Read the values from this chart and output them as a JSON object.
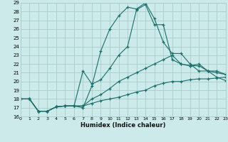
{
  "xlabel": "Humidex (Indice chaleur)",
  "bg_color": "#cceaea",
  "grid_color": "#aacccc",
  "line_color": "#1a6e6a",
  "xlim": [
    0,
    23
  ],
  "ylim": [
    16,
    29
  ],
  "yticks": [
    16,
    17,
    18,
    19,
    20,
    21,
    22,
    23,
    24,
    25,
    26,
    27,
    28,
    29
  ],
  "xticks": [
    0,
    1,
    2,
    3,
    4,
    5,
    6,
    7,
    8,
    9,
    10,
    11,
    12,
    13,
    14,
    15,
    16,
    17,
    18,
    19,
    20,
    21,
    22,
    23
  ],
  "series": [
    [
      18.0,
      18.0,
      16.6,
      16.6,
      17.1,
      17.2,
      17.2,
      17.0,
      19.5,
      23.5,
      26.0,
      27.5,
      28.5,
      28.3,
      29.0,
      27.2,
      24.5,
      23.2,
      23.2,
      22.0,
      21.2,
      21.2,
      20.5,
      20.1
    ],
    [
      18.0,
      18.0,
      16.6,
      16.6,
      17.1,
      17.2,
      17.2,
      21.2,
      19.7,
      20.2,
      21.5,
      23.0,
      24.0,
      28.2,
      28.8,
      26.5,
      26.5,
      22.5,
      22.0,
      21.8,
      21.8,
      21.2,
      21.2,
      20.8
    ],
    [
      18.0,
      18.0,
      16.6,
      16.6,
      17.1,
      17.2,
      17.2,
      17.2,
      18.0,
      18.5,
      19.2,
      20.0,
      20.5,
      21.0,
      21.5,
      22.0,
      22.5,
      23.0,
      22.0,
      21.8,
      22.0,
      21.2,
      21.0,
      20.8
    ],
    [
      18.0,
      18.0,
      16.6,
      16.6,
      17.1,
      17.2,
      17.2,
      17.2,
      17.5,
      17.8,
      18.0,
      18.2,
      18.5,
      18.8,
      19.0,
      19.5,
      19.8,
      20.0,
      20.0,
      20.2,
      20.3,
      20.3,
      20.4,
      20.5
    ]
  ]
}
